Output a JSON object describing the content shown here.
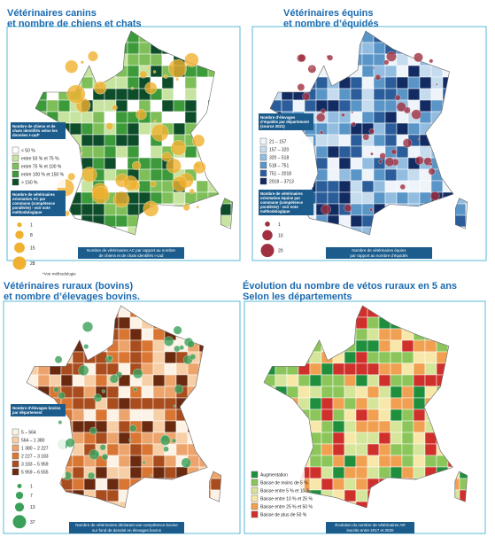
{
  "panels": [
    {
      "title": [
        "Vétérinaires canins",
        "et nombre de chiens et chats"
      ],
      "legend_title": "Nombre de chiens et de chats identifiés selon les données I-cad*",
      "legend": [
        {
          "label": "< 50 %",
          "color": "#ffffff"
        },
        {
          "label": "entre 50 % et 75 %",
          "color": "#c7e3a0"
        },
        {
          "label": "entre 75 % et 100 %",
          "color": "#7fbf5a"
        },
        {
          "label": "entre 100 % et 150 %",
          "color": "#3d9a3a"
        },
        {
          "label": "> 150 %",
          "color": "#0e4d2a"
        }
      ],
      "size_title": "Nombre de vétérinaires orientation AC par commune (compétence pondérée) - voir note méthodologique",
      "sizes": [
        1,
        8,
        15,
        28
      ],
      "size_color": "#f0b030",
      "note": "*Voir méthodologie",
      "caption": [
        "Nombre de vétérinaires AC par rapport au nombre",
        "de chiens et de chats identifiés I-cad"
      ]
    },
    {
      "title": [
        "Vétérinaires équins",
        "et nombre d’équidés"
      ],
      "legend_title": "Nombre d’élevages d’équidés par département (source 2021)",
      "legend": [
        {
          "label": "21 – 157",
          "color": "#eef4fa"
        },
        {
          "label": "157 – 320",
          "color": "#c5dbee"
        },
        {
          "label": "320 – 518",
          "color": "#93bde0"
        },
        {
          "label": "518 – 751",
          "color": "#5a95c8"
        },
        {
          "label": "751 – 2018",
          "color": "#2a5d9a"
        },
        {
          "label": "2018 – 3713",
          "color": "#122c63"
        }
      ],
      "size_title": "Nombre de vétérinaires orientation équine par commune (compétence pondérée) - voir note méthodologique",
      "sizes": [
        1,
        10,
        20
      ],
      "size_color": "#a03040",
      "caption": [
        "Nombre de vétérinaires équins",
        "par rapport au nombre d’équidés"
      ]
    },
    {
      "title": [
        "Vétérinaires ruraux (bovins)",
        "et nombre d’élevages bovins."
      ],
      "legend_title": "Nombre d’élevages bovins par département",
      "legend": [
        {
          "label": "5 – 564",
          "color": "#fdf2e6"
        },
        {
          "label": "564 – 1 380",
          "color": "#f6cfa6"
        },
        {
          "label": "1 380 – 2 227",
          "color": "#eda46c"
        },
        {
          "label": "2 227 – 3 183",
          "color": "#d97634"
        },
        {
          "label": "3 183 – 5 959",
          "color": "#a94d1e"
        },
        {
          "label": "5 959 – 6 555",
          "color": "#6a2a10"
        }
      ],
      "sizes": [
        1,
        7,
        13,
        37
      ],
      "size_color": "#3aa05a",
      "caption": [
        "Nombre de vétérinaires déclarant une compétence bovine",
        "sur fond de densité en élevages bovins"
      ]
    },
    {
      "title": [
        "Évolution du nombre de vétos ruraux en 5 ans",
        "Selon les départements"
      ],
      "legend": [
        {
          "label": "Augmentation",
          "color": "#1f8f3d"
        },
        {
          "label": "Baisse de moins de 5 %",
          "color": "#8cc65a"
        },
        {
          "label": "Baisse entre 5 % et 10 %",
          "color": "#d5e59a"
        },
        {
          "label": "Baisse entre 10 % et 25 %",
          "color": "#f7e7a8"
        },
        {
          "label": "Baisse entre 25 % et 50 %",
          "color": "#f0a050"
        },
        {
          "label": "Baisse de plus de 50 %",
          "color": "#d0302c"
        }
      ],
      "caption": [
        "Évolution du nombre de vétérinaires AR",
        "inscrits entre 2017 et 2020"
      ]
    }
  ]
}
